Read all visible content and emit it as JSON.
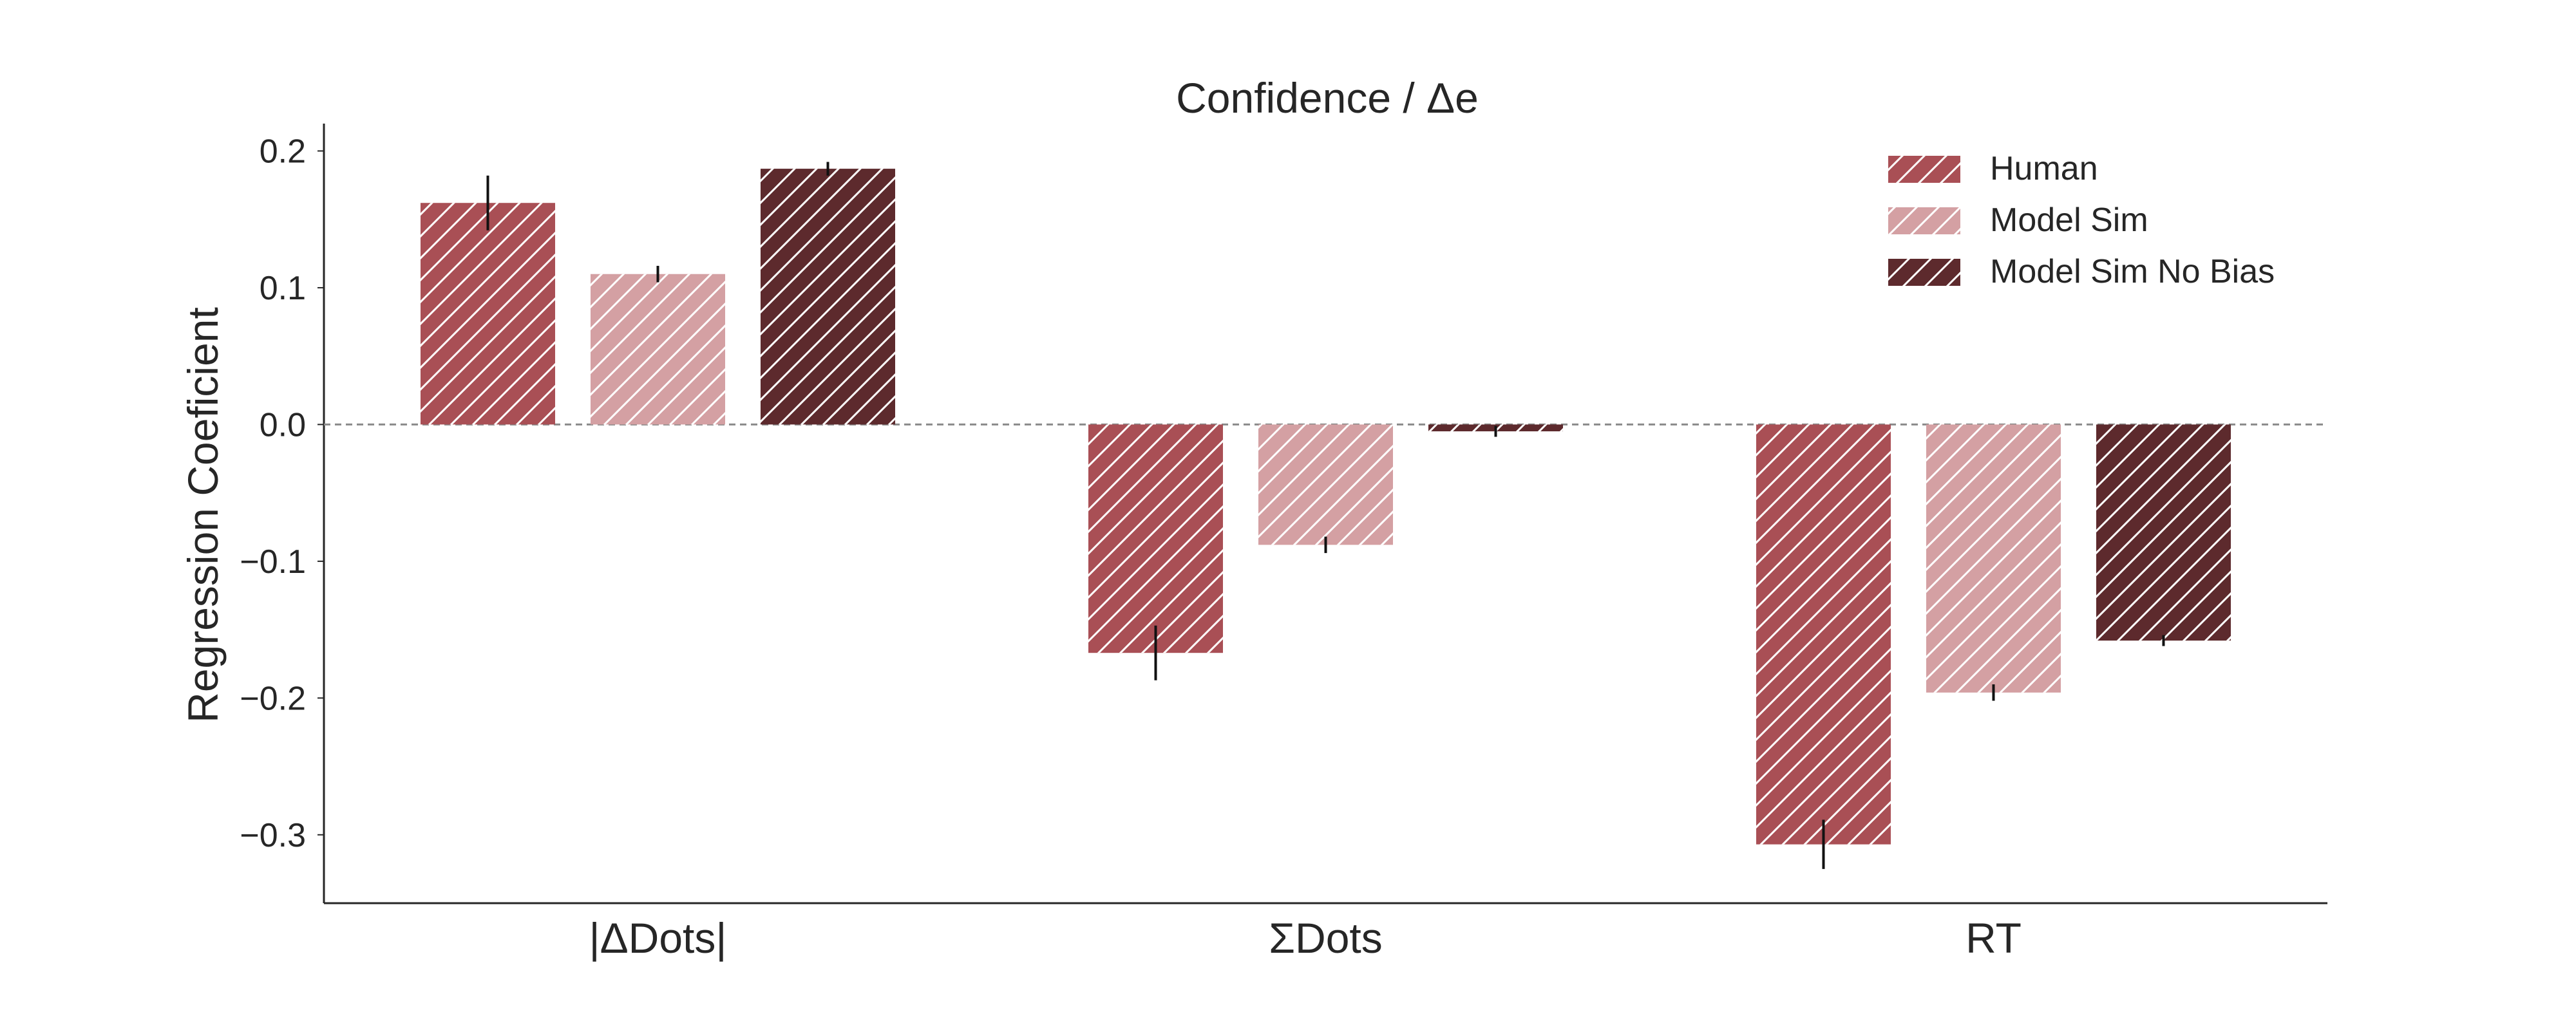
{
  "chart_data": {
    "type": "bar",
    "title": "Confidence / Δe",
    "xlabel": "",
    "ylabel": "Regression Coeficient",
    "categories": [
      "|ΔDots|",
      "ΣDots",
      "RT"
    ],
    "ylim": [
      -0.35,
      0.22
    ],
    "yticks": [
      0.2,
      0.1,
      0.0,
      -0.1,
      -0.2,
      -0.3
    ],
    "ytick_labels": [
      "0.2",
      "0.1",
      "0.0",
      "−0.1",
      "−0.2",
      "−0.3"
    ],
    "hatch": "diagonal",
    "grid": false,
    "zero_line": "dashed",
    "legend_position": "top-right",
    "series": [
      {
        "name": "Human",
        "color": "#a94f55",
        "values": [
          0.162,
          -0.167,
          -0.307
        ],
        "errors": [
          0.02,
          0.02,
          0.018
        ]
      },
      {
        "name": "Model Sim",
        "color": "#d4a0a3",
        "values": [
          0.11,
          -0.088,
          -0.196
        ],
        "errors": [
          0.006,
          0.006,
          0.006
        ]
      },
      {
        "name": "Model Sim No Bias",
        "color": "#5d2a2d",
        "values": [
          0.187,
          -0.005,
          -0.158
        ],
        "errors": [
          0.005,
          0.004,
          0.004
        ]
      }
    ]
  }
}
